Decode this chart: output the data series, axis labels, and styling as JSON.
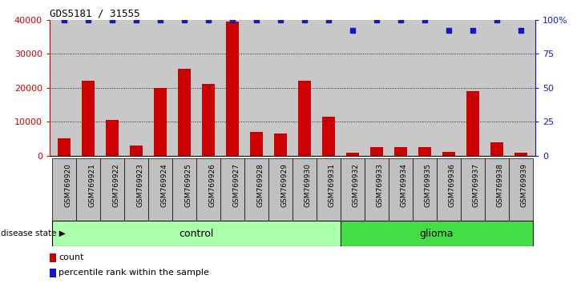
{
  "title": "GDS5181 / 31555",
  "samples": [
    "GSM769920",
    "GSM769921",
    "GSM769922",
    "GSM769923",
    "GSM769924",
    "GSM769925",
    "GSM769926",
    "GSM769927",
    "GSM769928",
    "GSM769929",
    "GSM769930",
    "GSM769931",
    "GSM769932",
    "GSM769933",
    "GSM769934",
    "GSM769935",
    "GSM769936",
    "GSM769937",
    "GSM769938",
    "GSM769939"
  ],
  "bar_values": [
    5000,
    22000,
    10500,
    3000,
    20000,
    25500,
    21000,
    39500,
    7000,
    6500,
    22000,
    11500,
    800,
    2500,
    2500,
    2600,
    1200,
    19000,
    4000,
    900
  ],
  "percentile_values": [
    100,
    100,
    100,
    100,
    100,
    100,
    100,
    100,
    100,
    100,
    100,
    100,
    92,
    100,
    100,
    100,
    92,
    92,
    100,
    92
  ],
  "control_count": 12,
  "glioma_count": 8,
  "bar_color": "#CC0000",
  "dot_color": "#1515CC",
  "control_color": "#AAFFAA",
  "glioma_color": "#44DD44",
  "bg_plot_color": "#C8C8C8",
  "sample_cell_color": "#C0C0C0",
  "ylim_left": [
    0,
    40000
  ],
  "ylim_right": [
    0,
    100
  ],
  "yticks_left": [
    0,
    10000,
    20000,
    30000,
    40000
  ],
  "ytick_labels_left": [
    "0",
    "10000",
    "20000",
    "30000",
    "40000"
  ],
  "yticks_right": [
    0,
    25,
    50,
    75,
    100
  ],
  "ytick_labels_right": [
    "0",
    "25",
    "50",
    "75",
    "100%"
  ],
  "grid_values": [
    10000,
    20000,
    30000
  ],
  "legend_count_label": "count",
  "legend_pct_label": "percentile rank within the sample",
  "label_control": "control",
  "label_glioma": "glioma",
  "label_disease_state": "disease state"
}
